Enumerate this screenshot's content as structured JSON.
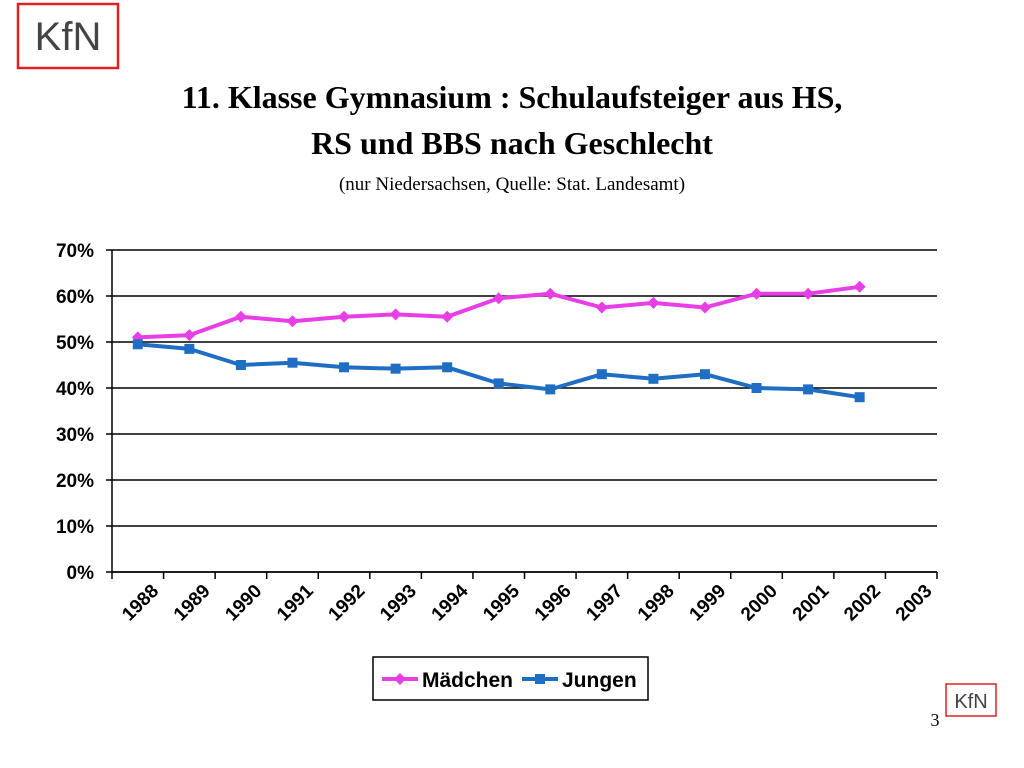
{
  "logo": "KfN",
  "page_number": "3",
  "chart_data": {
    "type": "line",
    "title": [
      "11. Klasse Gymnasium : Schulaufsteiger aus HS,",
      "RS und BBS nach Geschlecht"
    ],
    "subtitle": "(nur Niedersachsen, Quelle: Stat. Landesamt)",
    "categories": [
      "1988",
      "1989",
      "1990",
      "1991",
      "1992",
      "1993",
      "1994",
      "1995",
      "1996",
      "1997",
      "1998",
      "1999",
      "2000",
      "2001",
      "2002",
      "2003"
    ],
    "series": [
      {
        "name": "Mädchen",
        "color": "#e83ee6",
        "marker": "diamond",
        "values": [
          51,
          51.5,
          55.5,
          54.5,
          55.5,
          56,
          55.5,
          59.5,
          60.5,
          57.5,
          58.5,
          57.5,
          60.5,
          60.5,
          62,
          null
        ]
      },
      {
        "name": "Jungen",
        "color": "#1f6ec4",
        "marker": "square",
        "values": [
          49.5,
          48.5,
          45,
          45.5,
          44.5,
          44.2,
          44.5,
          41,
          39.7,
          43,
          42,
          43,
          40,
          39.7,
          38,
          null
        ]
      }
    ],
    "ylim": [
      0,
      70
    ],
    "yticks": [
      {
        "value": 0,
        "label": "0%"
      },
      {
        "value": 10,
        "label": "10%"
      },
      {
        "value": 20,
        "label": "20%"
      },
      {
        "value": 30,
        "label": "30%"
      },
      {
        "value": 40,
        "label": "40%"
      },
      {
        "value": 50,
        "label": "50%"
      },
      {
        "value": 60,
        "label": "60%"
      },
      {
        "value": 70,
        "label": "70%"
      }
    ],
    "grid": true,
    "legend": "bottom"
  }
}
